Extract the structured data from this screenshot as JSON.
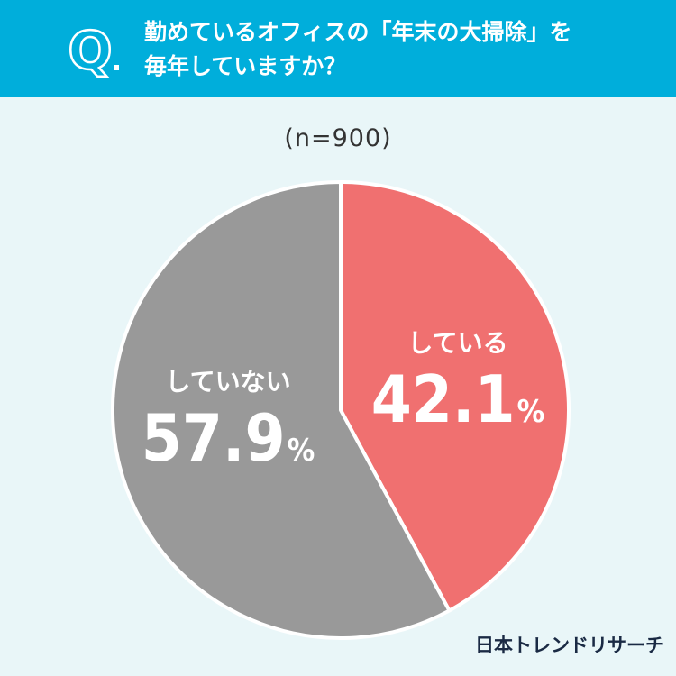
{
  "header": {
    "q_letter": "Q",
    "question_line1": "勤めているオフィスの「年末の大掃除」を",
    "question_line2": "毎年していますか？"
  },
  "sample_size": "(n=900)",
  "brand": "日本トレンドリサーチ",
  "colors": {
    "header_bg": "#00aedb",
    "page_bg": "#e9f6f8",
    "slice_yes": "#f07070",
    "slice_no": "#999999",
    "label_text": "#ffffff"
  },
  "chart_data": {
    "type": "pie",
    "title": "",
    "slices": [
      {
        "label": "している",
        "value": 42.1,
        "display": "42.1",
        "unit": "%",
        "color": "#f07070"
      },
      {
        "label": "していない",
        "value": 57.9,
        "display": "57.9",
        "unit": "%",
        "color": "#999999"
      }
    ],
    "start_angle": "12 o'clock",
    "direction": "clockwise"
  }
}
